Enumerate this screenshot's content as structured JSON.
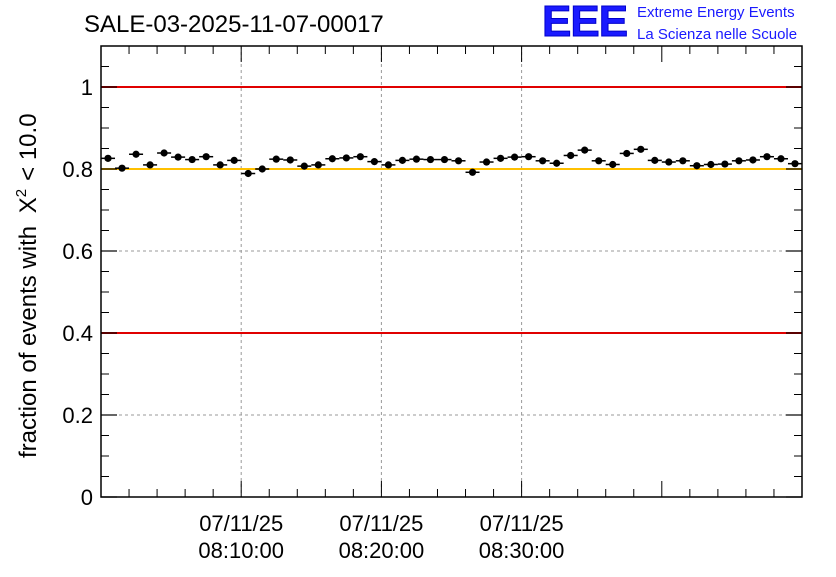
{
  "chart_data": {
    "type": "scatter",
    "title": "SALE-03-2025-11-07-00017",
    "xlabel": "",
    "ylabel": "fraction of events with",
    "ylabel_symbol": "X",
    "ylabel_exponent": "2",
    "ylabel_tail": "< 10.0",
    "ylim": [
      0,
      1.1
    ],
    "x_unit": "minutes after 08:00:00",
    "xlim": [
      0,
      50
    ],
    "y_ticks": [
      {
        "value": 0,
        "label": "0"
      },
      {
        "value": 0.2,
        "label": "0.2"
      },
      {
        "value": 0.4,
        "label": "0.4"
      },
      {
        "value": 0.6,
        "label": "0.6"
      },
      {
        "value": 0.8,
        "label": "0.8"
      },
      {
        "value": 1.0,
        "label": "1"
      }
    ],
    "x_ticks": [
      {
        "value": 10,
        "date": "07/11/25",
        "time": "08:10:00"
      },
      {
        "value": 20,
        "date": "07/11/25",
        "time": "08:20:00"
      },
      {
        "value": 30,
        "date": "07/11/25",
        "time": "08:30:00"
      }
    ],
    "reference_lines": [
      {
        "y": 1.0,
        "color": "#e00000"
      },
      {
        "y": 0.8,
        "color": "#ffc000"
      },
      {
        "y": 0.4,
        "color": "#e00000"
      }
    ],
    "bin_width": 1.0,
    "series": [
      {
        "name": "fraction",
        "x": [
          0.5,
          1.5,
          2.5,
          3.5,
          4.5,
          5.5,
          6.5,
          7.5,
          8.5,
          9.5,
          10.5,
          11.5,
          12.5,
          13.5,
          14.5,
          15.5,
          16.5,
          17.5,
          18.5,
          19.5,
          20.5,
          21.5,
          22.5,
          23.5,
          24.5,
          25.5,
          26.5,
          27.5,
          28.5,
          29.5,
          30.5,
          31.5,
          32.5,
          33.5,
          34.5,
          35.5,
          36.5,
          37.5,
          38.5,
          39.5,
          40.5,
          41.5,
          42.5,
          43.5,
          44.5,
          45.5,
          46.5,
          47.5,
          48.5,
          49.5
        ],
        "y": [
          0.826,
          0.802,
          0.836,
          0.81,
          0.839,
          0.829,
          0.823,
          0.83,
          0.81,
          0.821,
          0.789,
          0.8,
          0.824,
          0.822,
          0.807,
          0.81,
          0.825,
          0.827,
          0.83,
          0.818,
          0.81,
          0.821,
          0.824,
          0.823,
          0.823,
          0.82,
          0.792,
          0.817,
          0.826,
          0.829,
          0.83,
          0.82,
          0.814,
          0.833,
          0.846,
          0.82,
          0.811,
          0.838,
          0.848,
          0.821,
          0.817,
          0.82,
          0.808,
          0.811,
          0.812,
          0.82,
          0.822,
          0.83,
          0.825,
          0.813
        ]
      }
    ]
  },
  "logo": {
    "letters": "EEE",
    "line1": "Extreme Energy Events",
    "line2": "La Scienza nelle Scuole"
  },
  "colors": {
    "logo": "#1a1aff",
    "grid": "#999999",
    "markers": "#000000"
  }
}
